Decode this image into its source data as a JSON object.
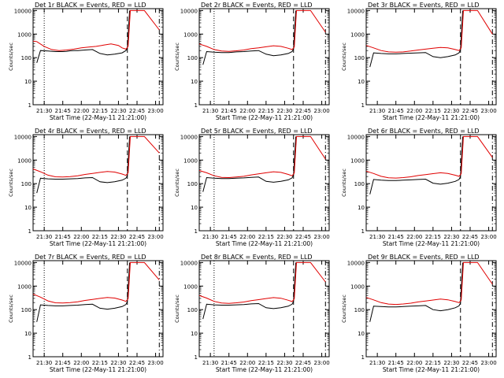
{
  "colors": {
    "events": "#000000",
    "lld": "#e00000",
    "axes": "#000000",
    "background": "#ffffff"
  },
  "shared": {
    "xlabel": "Start Time (22-May-11 21:21:00)",
    "ylabel": "Counts/sec",
    "x_ticks": [
      "21:30",
      "21:45",
      "22:00",
      "22:15",
      "22:30",
      "22:45",
      "23:00"
    ],
    "y_ticks": [
      "1",
      "10",
      "100",
      "1000",
      "10000"
    ]
  },
  "chart_data": [
    {
      "type": "line",
      "title": "Det 1r BLACK = Events, RED = LLD",
      "xlabel": "Start Time (22-May-11 21:21:00)",
      "ylabel": "Counts/sec",
      "xlim": [
        21.35,
        23.1
      ],
      "ylim": [
        1,
        12000
      ],
      "y_scale": "log",
      "series": [
        {
          "name": "Events",
          "x": [
            21.4,
            21.45,
            21.55,
            21.65,
            21.75,
            21.8,
            21.85,
            21.9,
            21.95,
            22.05,
            22.15,
            22.25,
            22.35,
            22.45,
            22.55,
            22.6,
            22.62,
            22.65
          ],
          "y": [
            60,
            200,
            190,
            180,
            180,
            185,
            195,
            200,
            200,
            210,
            220,
            150,
            130,
            140,
            160,
            200,
            250,
            10000
          ]
        },
        {
          "name": "LLD",
          "x": [
            21.35,
            21.4,
            21.5,
            21.6,
            21.7,
            21.8,
            21.9,
            22.0,
            22.1,
            22.2,
            22.3,
            22.4,
            22.5,
            22.55,
            22.6,
            22.63,
            22.66,
            22.85,
            23.05
          ],
          "y": [
            500,
            480,
            300,
            220,
            200,
            210,
            230,
            260,
            280,
            300,
            340,
            380,
            330,
            260,
            230,
            300,
            10000,
            10000,
            1500
          ]
        }
      ],
      "vlines": [
        {
          "x": 21.5,
          "style": "dotted"
        },
        {
          "x": 22.62,
          "style": "dashed"
        },
        {
          "x": 23.05,
          "style": "dashdot"
        }
      ]
    },
    {
      "type": "line",
      "title": "Det 2r BLACK = Events, RED = LLD",
      "xlabel": "Start Time (22-May-11 21:21:00)",
      "ylabel": "Counts/sec",
      "xlim": [
        21.35,
        23.1
      ],
      "ylim": [
        1,
        12000
      ],
      "y_scale": "log",
      "series": [
        {
          "name": "Events",
          "x": [
            21.4,
            21.45,
            21.55,
            21.65,
            21.75,
            21.85,
            21.95,
            22.05,
            22.15,
            22.25,
            22.35,
            22.45,
            22.55,
            22.6,
            22.62,
            22.65
          ],
          "y": [
            50,
            180,
            170,
            165,
            165,
            175,
            180,
            190,
            200,
            140,
            120,
            130,
            150,
            180,
            230,
            10000
          ]
        },
        {
          "name": "LLD",
          "x": [
            21.35,
            21.45,
            21.55,
            21.65,
            21.75,
            21.85,
            21.95,
            22.05,
            22.15,
            22.25,
            22.35,
            22.45,
            22.55,
            22.6,
            22.63,
            22.66,
            22.85,
            23.05
          ],
          "y": [
            380,
            300,
            220,
            190,
            185,
            195,
            210,
            240,
            260,
            290,
            320,
            300,
            250,
            220,
            280,
            10000,
            10000,
            1200
          ]
        }
      ],
      "vlines": [
        {
          "x": 21.55,
          "style": "dotted"
        },
        {
          "x": 22.62,
          "style": "dashed"
        },
        {
          "x": 23.05,
          "style": "dashdot"
        }
      ]
    },
    {
      "type": "line",
      "title": "Det 3r BLACK = Events, RED = LLD",
      "xlabel": "Start Time (22-May-11 21:21:00)",
      "ylabel": "Counts/sec",
      "xlim": [
        21.35,
        23.1
      ],
      "ylim": [
        1,
        12000
      ],
      "y_scale": "log",
      "series": [
        {
          "name": "Events",
          "x": [
            21.4,
            21.45,
            21.55,
            21.65,
            21.75,
            21.85,
            21.95,
            22.05,
            22.15,
            22.25,
            22.35,
            22.45,
            22.55,
            22.6,
            22.62,
            22.65
          ],
          "y": [
            40,
            160,
            150,
            145,
            145,
            150,
            155,
            160,
            165,
            110,
            100,
            110,
            130,
            160,
            210,
            10000
          ]
        },
        {
          "name": "LLD",
          "x": [
            21.35,
            21.45,
            21.55,
            21.65,
            21.75,
            21.85,
            21.95,
            22.05,
            22.15,
            22.25,
            22.35,
            22.45,
            22.55,
            22.6,
            22.63,
            22.66,
            22.85,
            23.05
          ],
          "y": [
            330,
            260,
            200,
            175,
            170,
            175,
            190,
            210,
            230,
            250,
            270,
            260,
            220,
            200,
            260,
            10000,
            10000,
            1000
          ]
        }
      ],
      "vlines": [
        {
          "x": 22.62,
          "style": "dashed"
        },
        {
          "x": 23.05,
          "style": "dashdot"
        }
      ]
    },
    {
      "type": "line",
      "title": "Det 4r BLACK = Events, RED = LLD",
      "xlabel": "Start Time (22-May-11 21:21:00)",
      "ylabel": "Counts/sec",
      "xlim": [
        21.35,
        23.1
      ],
      "ylim": [
        1,
        12000
      ],
      "y_scale": "log",
      "series": [
        {
          "name": "Events",
          "x": [
            21.4,
            21.45,
            21.55,
            21.65,
            21.75,
            21.85,
            21.95,
            22.05,
            22.15,
            22.25,
            22.35,
            22.45,
            22.55,
            22.6,
            22.62,
            22.65
          ],
          "y": [
            40,
            170,
            160,
            155,
            155,
            160,
            165,
            175,
            180,
            120,
            110,
            120,
            140,
            170,
            220,
            10000
          ]
        },
        {
          "name": "LLD",
          "x": [
            21.35,
            21.45,
            21.55,
            21.65,
            21.75,
            21.85,
            21.95,
            22.05,
            22.15,
            22.25,
            22.35,
            22.45,
            22.55,
            22.6,
            22.63,
            22.66,
            22.85,
            23.05
          ],
          "y": [
            420,
            320,
            230,
            195,
            190,
            200,
            215,
            245,
            270,
            300,
            330,
            310,
            255,
            225,
            290,
            10000,
            10000,
            2000
          ]
        }
      ],
      "vlines": [
        {
          "x": 21.5,
          "style": "dotted"
        },
        {
          "x": 22.62,
          "style": "dashed"
        },
        {
          "x": 23.05,
          "style": "dashdot"
        }
      ]
    },
    {
      "type": "line",
      "title": "Det 5r BLACK = Events, RED = LLD",
      "xlabel": "Start Time (22-May-11 21:21:00)",
      "ylabel": "Counts/sec",
      "xlim": [
        21.35,
        23.1
      ],
      "ylim": [
        1,
        12000
      ],
      "y_scale": "log",
      "series": [
        {
          "name": "Events",
          "x": [
            21.4,
            21.45,
            21.55,
            21.65,
            21.75,
            21.85,
            21.95,
            22.05,
            22.15,
            22.25,
            22.35,
            22.45,
            22.55,
            22.6,
            22.62,
            22.65
          ],
          "y": [
            45,
            180,
            170,
            165,
            165,
            170,
            175,
            185,
            190,
            125,
            115,
            125,
            145,
            175,
            230,
            10000
          ]
        },
        {
          "name": "LLD",
          "x": [
            21.35,
            21.45,
            21.55,
            21.65,
            21.75,
            21.85,
            21.95,
            22.05,
            22.15,
            22.25,
            22.35,
            22.45,
            22.55,
            22.6,
            22.63,
            22.66,
            22.85,
            23.05
          ],
          "y": [
            360,
            290,
            215,
            185,
            180,
            190,
            205,
            235,
            260,
            290,
            320,
            300,
            245,
            215,
            280,
            10000,
            10000,
            1100
          ]
        }
      ],
      "vlines": [
        {
          "x": 21.55,
          "style": "dotted"
        },
        {
          "x": 22.62,
          "style": "dashed"
        },
        {
          "x": 23.05,
          "style": "dashdot"
        }
      ]
    },
    {
      "type": "line",
      "title": "Det 6r BLACK = Events, RED = LLD",
      "xlabel": "Start Time (22-May-11 21:21:00)",
      "ylabel": "Counts/sec",
      "xlim": [
        21.35,
        23.1
      ],
      "ylim": [
        1,
        12000
      ],
      "y_scale": "log",
      "series": [
        {
          "name": "Events",
          "x": [
            21.4,
            21.45,
            21.55,
            21.65,
            21.75,
            21.85,
            21.95,
            22.05,
            22.15,
            22.25,
            22.35,
            22.45,
            22.55,
            22.6,
            22.62,
            22.65
          ],
          "y": [
            35,
            150,
            140,
            135,
            135,
            140,
            145,
            150,
            155,
            105,
            95,
            105,
            125,
            150,
            200,
            10000
          ]
        },
        {
          "name": "LLD",
          "x": [
            21.35,
            21.45,
            21.55,
            21.65,
            21.75,
            21.85,
            21.95,
            22.05,
            22.15,
            22.25,
            22.35,
            22.45,
            22.55,
            22.6,
            22.63,
            22.66,
            22.85,
            23.05
          ],
          "y": [
            340,
            270,
            205,
            178,
            172,
            180,
            195,
            220,
            240,
            265,
            290,
            270,
            228,
            205,
            265,
            10000,
            10000,
            1300
          ]
        }
      ],
      "vlines": [
        {
          "x": 22.62,
          "style": "dashed"
        },
        {
          "x": 23.05,
          "style": "dashdot"
        }
      ]
    },
    {
      "type": "line",
      "title": "Det 7r BLACK = Events, RED = LLD",
      "xlabel": "Start Time (22-May-11 21:21:00)",
      "ylabel": "Counts/sec",
      "xlim": [
        21.35,
        23.1
      ],
      "ylim": [
        1,
        12000
      ],
      "y_scale": "log",
      "series": [
        {
          "name": "Events",
          "x": [
            21.4,
            21.45,
            21.55,
            21.65,
            21.75,
            21.85,
            21.95,
            22.05,
            22.15,
            22.25,
            22.35,
            22.45,
            22.55,
            22.6,
            22.62,
            22.65
          ],
          "y": [
            30,
            160,
            150,
            145,
            145,
            150,
            155,
            165,
            170,
            115,
            105,
            115,
            135,
            165,
            220,
            10000
          ]
        },
        {
          "name": "LLD",
          "x": [
            21.35,
            21.45,
            21.55,
            21.65,
            21.75,
            21.85,
            21.95,
            22.05,
            22.15,
            22.25,
            22.35,
            22.45,
            22.55,
            22.6,
            22.63,
            22.66,
            22.85,
            23.05
          ],
          "y": [
            460,
            340,
            235,
            195,
            190,
            200,
            215,
            245,
            270,
            300,
            330,
            310,
            255,
            225,
            290,
            10000,
            10000,
            1800
          ]
        }
      ],
      "vlines": [
        {
          "x": 21.5,
          "style": "dotted"
        },
        {
          "x": 22.62,
          "style": "dashed"
        },
        {
          "x": 23.05,
          "style": "dashdot"
        }
      ]
    },
    {
      "type": "line",
      "title": "Det 8r BLACK = Events, RED = LLD",
      "xlabel": "Start Time (22-May-11 21:21:00)",
      "ylabel": "Counts/sec",
      "xlim": [
        21.35,
        23.1
      ],
      "ylim": [
        1,
        12000
      ],
      "y_scale": "log",
      "series": [
        {
          "name": "Events",
          "x": [
            21.4,
            21.45,
            21.55,
            21.65,
            21.75,
            21.85,
            21.95,
            22.05,
            22.15,
            22.25,
            22.35,
            22.45,
            22.55,
            22.6,
            22.62,
            22.65
          ],
          "y": [
            40,
            170,
            160,
            155,
            155,
            160,
            165,
            175,
            180,
            120,
            110,
            120,
            140,
            170,
            225,
            10000
          ]
        },
        {
          "name": "LLD",
          "x": [
            21.35,
            21.45,
            21.55,
            21.65,
            21.75,
            21.85,
            21.95,
            22.05,
            22.15,
            22.25,
            22.35,
            22.45,
            22.55,
            22.6,
            22.63,
            22.66,
            22.85,
            23.05
          ],
          "y": [
            400,
            310,
            225,
            190,
            185,
            195,
            210,
            240,
            265,
            295,
            325,
            305,
            250,
            220,
            285,
            10000,
            10000,
            1500
          ]
        }
      ],
      "vlines": [
        {
          "x": 21.55,
          "style": "dotted"
        },
        {
          "x": 22.62,
          "style": "dashed"
        },
        {
          "x": 23.05,
          "style": "dashdot"
        }
      ]
    },
    {
      "type": "line",
      "title": "Det 9r BLACK = Events, RED = LLD",
      "xlabel": "Start Time (22-May-11 21:21:00)",
      "ylabel": "Counts/sec",
      "xlim": [
        21.35,
        23.1
      ],
      "ylim": [
        1,
        12000
      ],
      "y_scale": "log",
      "series": [
        {
          "name": "Events",
          "x": [
            21.4,
            21.45,
            21.55,
            21.65,
            21.75,
            21.85,
            21.95,
            22.05,
            22.15,
            22.25,
            22.35,
            22.45,
            22.55,
            22.6,
            22.62,
            22.65
          ],
          "y": [
            30,
            140,
            135,
            130,
            130,
            135,
            140,
            145,
            150,
            100,
            90,
            100,
            120,
            145,
            190,
            10000
          ]
        },
        {
          "name": "LLD",
          "x": [
            21.35,
            21.45,
            21.55,
            21.65,
            21.75,
            21.85,
            21.95,
            22.05,
            22.15,
            22.25,
            22.35,
            22.45,
            22.55,
            22.6,
            22.63,
            22.66,
            22.85,
            23.05
          ],
          "y": [
            330,
            260,
            198,
            172,
            166,
            174,
            188,
            212,
            232,
            256,
            280,
            262,
            220,
            198,
            255,
            10000,
            10000,
            1200
          ]
        }
      ],
      "vlines": [
        {
          "x": 22.62,
          "style": "dashed"
        },
        {
          "x": 23.05,
          "style": "dashdot"
        }
      ]
    }
  ]
}
